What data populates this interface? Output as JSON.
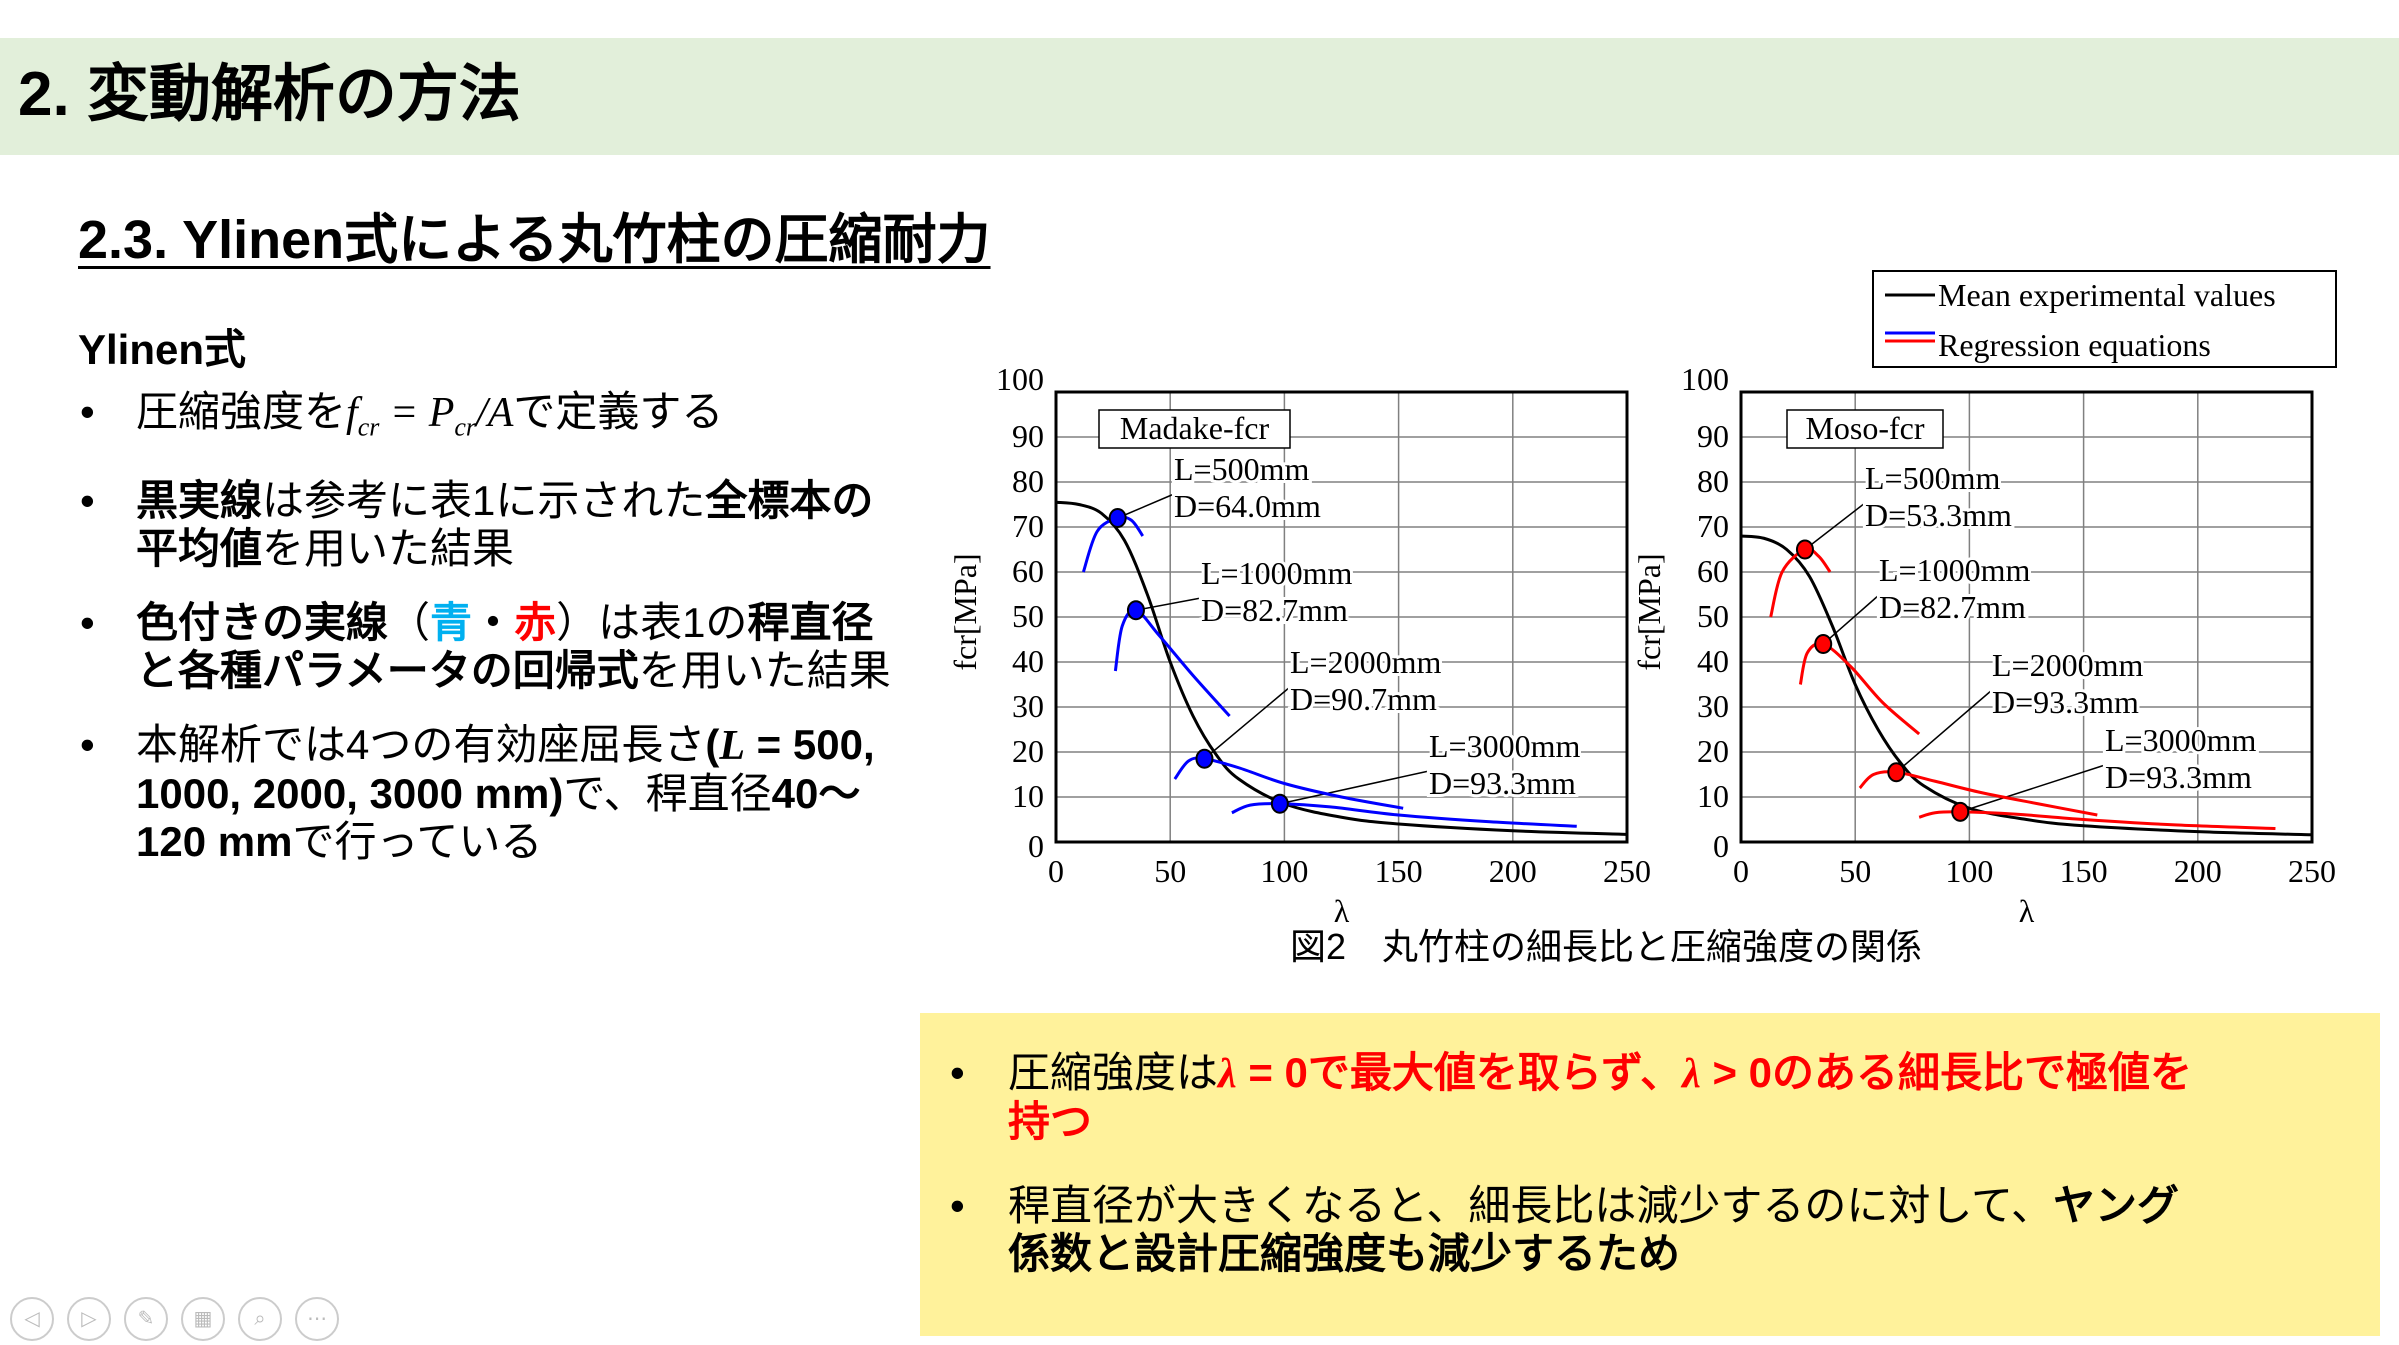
{
  "header": {
    "title": "2. 変動解析の方法"
  },
  "subtitle": "2.3. Ylinen式による丸竹柱の圧縮耐力",
  "heading": "Ylinen式",
  "bullet_char": "•",
  "bullets": [
    [
      {
        "t": "圧縮強度を"
      },
      {
        "t": "f",
        "m": 1
      },
      {
        "t": "cr",
        "m": 1,
        "sub": 1
      },
      {
        "t": " = ",
        "m": 1
      },
      {
        "t": "P",
        "m": 1
      },
      {
        "t": "cr",
        "m": 1,
        "sub": 1
      },
      {
        "t": "/A",
        "m": 1
      },
      {
        "t": "で定義する"
      }
    ],
    [
      {
        "t": "黒実線",
        "b": 1
      },
      {
        "t": "は参考に表1に示された"
      },
      {
        "t": "全標本の平均値",
        "b": 1
      },
      {
        "t": "を用いた結果"
      }
    ],
    [
      {
        "t": "色付きの実線",
        "b": 1
      },
      {
        "t": "（"
      },
      {
        "t": "青",
        "b": 1,
        "c": "#00b0f0"
      },
      {
        "t": "・",
        "b": 1
      },
      {
        "t": "赤",
        "b": 1,
        "c": "#ff0000"
      },
      {
        "t": "）は表1の"
      },
      {
        "t": "稈直径と各種パラメータの回帰式",
        "b": 1
      },
      {
        "t": "を用いた結果"
      }
    ],
    [
      {
        "t": "本解析では4つの有効座屈長さ"
      },
      {
        "t": "(",
        "b": 1
      },
      {
        "t": "L",
        "b": 1,
        "m": 1
      },
      {
        "t": " = 500, 1000, 2000, 3000 mm)",
        "b": 1
      },
      {
        "t": "で、稈直径"
      },
      {
        "t": "40〜120 mm",
        "b": 1
      },
      {
        "t": "で行っている"
      }
    ]
  ],
  "chart_data": [
    {
      "type": "line",
      "title": "Madake-fcr",
      "xlabel": "λ",
      "ylabel": "fcr[MPa]",
      "xlim": [
        0,
        250
      ],
      "ylim": [
        0,
        100
      ],
      "xticks": [
        "0",
        "50",
        "100",
        "150",
        "200",
        "250"
      ],
      "yticks": [
        "0",
        "10",
        "20",
        "30",
        "40",
        "50",
        "60",
        "70",
        "80",
        "90",
        "100"
      ],
      "mean": [
        [
          0,
          75.5
        ],
        [
          10,
          75
        ],
        [
          20,
          73
        ],
        [
          30,
          67
        ],
        [
          40,
          55
        ],
        [
          50,
          40
        ],
        [
          60,
          28
        ],
        [
          70,
          19.5
        ],
        [
          80,
          14
        ],
        [
          100,
          8.5
        ],
        [
          125,
          5.5
        ],
        [
          150,
          4
        ],
        [
          200,
          2.5
        ],
        [
          250,
          1.7
        ]
      ],
      "series_color": "#0000ff",
      "regression": [
        {
          "label": [
            "L=500mm",
            "D=64.0mm"
          ],
          "points": [
            [
              12,
              60
            ],
            [
              18,
              69
            ],
            [
              27,
              72
            ],
            [
              33,
              71.5
            ],
            [
              38,
              68
            ]
          ],
          "marker": [
            27,
            72
          ]
        },
        {
          "label": [
            "L=1000mm",
            "D=82.7mm"
          ],
          "points": [
            [
              26,
              38
            ],
            [
              29,
              48
            ],
            [
              35,
              51.5
            ],
            [
              45,
              46
            ],
            [
              60,
              37
            ],
            [
              76,
              28
            ]
          ],
          "marker": [
            35,
            51.5
          ]
        },
        {
          "label": [
            "L=2000mm",
            "D=90.7mm"
          ],
          "points": [
            [
              52,
              14
            ],
            [
              58,
              18
            ],
            [
              65,
              18.5
            ],
            [
              80,
              16.5
            ],
            [
              100,
              13
            ],
            [
              125,
              10
            ],
            [
              152,
              7.5
            ]
          ],
          "marker": [
            65,
            18.5
          ]
        },
        {
          "label": [
            "L=3000mm",
            "D=93.3mm"
          ],
          "points": [
            [
              77,
              6.5
            ],
            [
              85,
              8.2
            ],
            [
              98,
              8.5
            ],
            [
              120,
              7.8
            ],
            [
              150,
              6
            ],
            [
              190,
              4.5
            ],
            [
              228,
              3.5
            ]
          ],
          "marker": [
            98,
            8.5
          ]
        }
      ]
    },
    {
      "type": "line",
      "title": "Moso-fcr",
      "xlabel": "λ",
      "ylabel": "fcr[MPa]",
      "xlim": [
        0,
        250
      ],
      "ylim": [
        0,
        100
      ],
      "xticks": [
        "0",
        "50",
        "100",
        "150",
        "200",
        "250"
      ],
      "yticks": [
        "0",
        "10",
        "20",
        "30",
        "40",
        "50",
        "60",
        "70",
        "80",
        "90",
        "100"
      ],
      "mean": [
        [
          0,
          68
        ],
        [
          10,
          67.5
        ],
        [
          20,
          65
        ],
        [
          30,
          59
        ],
        [
          40,
          48
        ],
        [
          50,
          35
        ],
        [
          60,
          25
        ],
        [
          70,
          17.5
        ],
        [
          80,
          12.5
        ],
        [
          100,
          7.5
        ],
        [
          125,
          5
        ],
        [
          150,
          3.6
        ],
        [
          200,
          2.3
        ],
        [
          250,
          1.6
        ]
      ],
      "series_color": "#ff0000",
      "regression": [
        {
          "label": [
            "L=500mm",
            "D=53.3mm"
          ],
          "points": [
            [
              13,
              50
            ],
            [
              18,
              60
            ],
            [
              28,
              65
            ],
            [
              34,
              63.5
            ],
            [
              39,
              60
            ]
          ],
          "marker": [
            28,
            65
          ]
        },
        {
          "label": [
            "L=1000mm",
            "D=82.7mm"
          ],
          "points": [
            [
              26,
              35
            ],
            [
              29,
              42
            ],
            [
              36,
              44
            ],
            [
              48,
              39
            ],
            [
              62,
              31
            ],
            [
              78,
              24
            ]
          ],
          "marker": [
            36,
            44
          ]
        },
        {
          "label": [
            "L=2000mm",
            "D=93.3mm"
          ],
          "points": [
            [
              52,
              12
            ],
            [
              58,
              15
            ],
            [
              68,
              15.5
            ],
            [
              85,
              13.5
            ],
            [
              105,
              11
            ],
            [
              130,
              8.5
            ],
            [
              156,
              6
            ]
          ],
          "marker": [
            68,
            15.5
          ]
        },
        {
          "label": [
            "L=3000mm",
            "D=93.3mm"
          ],
          "points": [
            [
              78,
              5.5
            ],
            [
              85,
              6.5
            ],
            [
              96,
              6.7
            ],
            [
              120,
              6.2
            ],
            [
              150,
              5
            ],
            [
              190,
              3.8
            ],
            [
              234,
              3
            ]
          ],
          "marker": [
            96,
            6.7
          ]
        }
      ]
    }
  ],
  "legend": {
    "items": [
      {
        "label": "Mean experimental values",
        "color": "#000000"
      },
      {
        "label": "Regression equations",
        "colors": [
          "#0000ff",
          "#ff0000"
        ]
      }
    ]
  },
  "caption": "図2　丸竹柱の細長比と圧縮強度の関係",
  "summary_bullets": [
    [
      {
        "t": "圧縮強度は"
      },
      {
        "t": "λ",
        "b": 1,
        "m": 1,
        "c": "#ff0000"
      },
      {
        "t": " = 0",
        "b": 1,
        "c": "#ff0000"
      },
      {
        "t": "で最大値を取らず、",
        "b": 1,
        "c": "#ff0000"
      },
      {
        "t": "λ",
        "b": 1,
        "m": 1,
        "c": "#ff0000"
      },
      {
        "t": " > 0",
        "b": 1,
        "c": "#ff0000"
      },
      {
        "t": "のある細長比で極値を持つ",
        "b": 1,
        "c": "#ff0000"
      }
    ],
    [
      {
        "t": "稈直径が大きくなると、細長比は減少するのに対して、"
      },
      {
        "t": "ヤング係数と設計圧縮強度も減少するため",
        "b": 1
      }
    ]
  ],
  "nav_icons": [
    "prev-icon",
    "next-icon",
    "pen-icon",
    "slides-icon",
    "zoom-icon",
    "more-icon"
  ]
}
